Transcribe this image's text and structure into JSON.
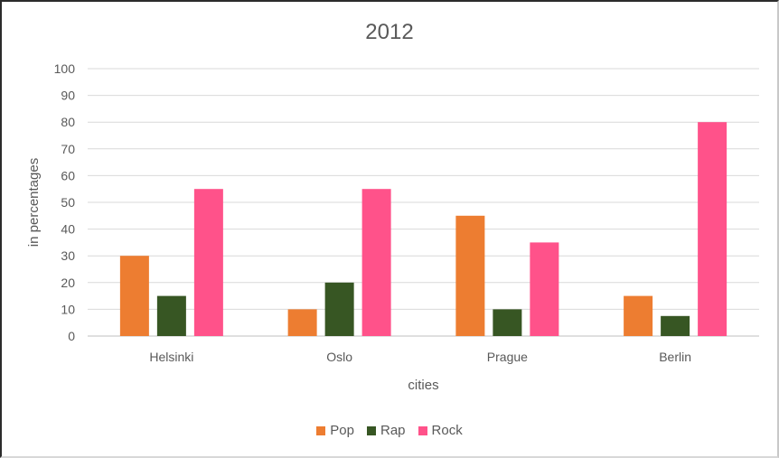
{
  "chart_data": {
    "type": "bar",
    "title": "2012",
    "xlabel": "cities",
    "ylabel": "in percentages",
    "categories": [
      "Helsinki",
      "Oslo",
      "Prague",
      "Berlin"
    ],
    "series": [
      {
        "name": "Pop",
        "color": "#ED7D31",
        "values": [
          30,
          10,
          45,
          15
        ]
      },
      {
        "name": "Rap",
        "color": "#375623",
        "values": [
          15,
          20,
          10,
          7.5
        ]
      },
      {
        "name": "Rock",
        "color": "#FF528A",
        "values": [
          55,
          55,
          35,
          80
        ]
      }
    ],
    "ylim": [
      0,
      100
    ],
    "yticks": [
      "0",
      "10",
      "20",
      "30",
      "40",
      "50",
      "60",
      "70",
      "80",
      "90",
      "100"
    ],
    "grid": true,
    "legend_position": "bottom"
  }
}
